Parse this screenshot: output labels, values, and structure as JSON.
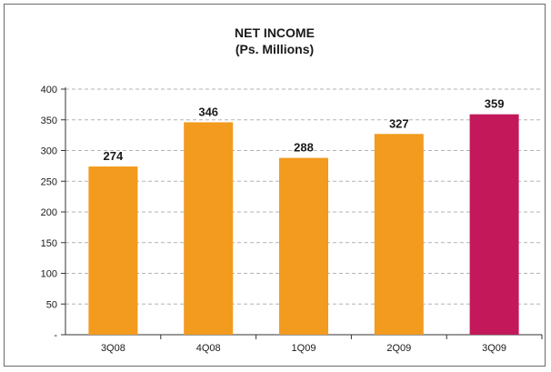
{
  "chart_data": {
    "type": "bar",
    "title": "NET INCOME",
    "subtitle": "(Ps. Millions)",
    "categories": [
      "3Q08",
      "4Q08",
      "1Q09",
      "2Q09",
      "3Q09"
    ],
    "values": [
      274,
      346,
      288,
      327,
      359
    ],
    "data_labels": [
      "274",
      "346",
      "288",
      "327",
      "359"
    ],
    "bar_colors": [
      "#f29b1e",
      "#f29b1e",
      "#f29b1e",
      "#f29b1e",
      "#c3185a"
    ],
    "ylim": [
      0,
      400
    ],
    "yticks": [
      0,
      50,
      100,
      150,
      200,
      250,
      300,
      350,
      400
    ],
    "ytick_labels": [
      "-",
      "50",
      "100",
      "150",
      "200",
      "250",
      "300",
      "350",
      "400"
    ],
    "grid": "horizontal-dashed",
    "xlabel": "",
    "ylabel": ""
  }
}
